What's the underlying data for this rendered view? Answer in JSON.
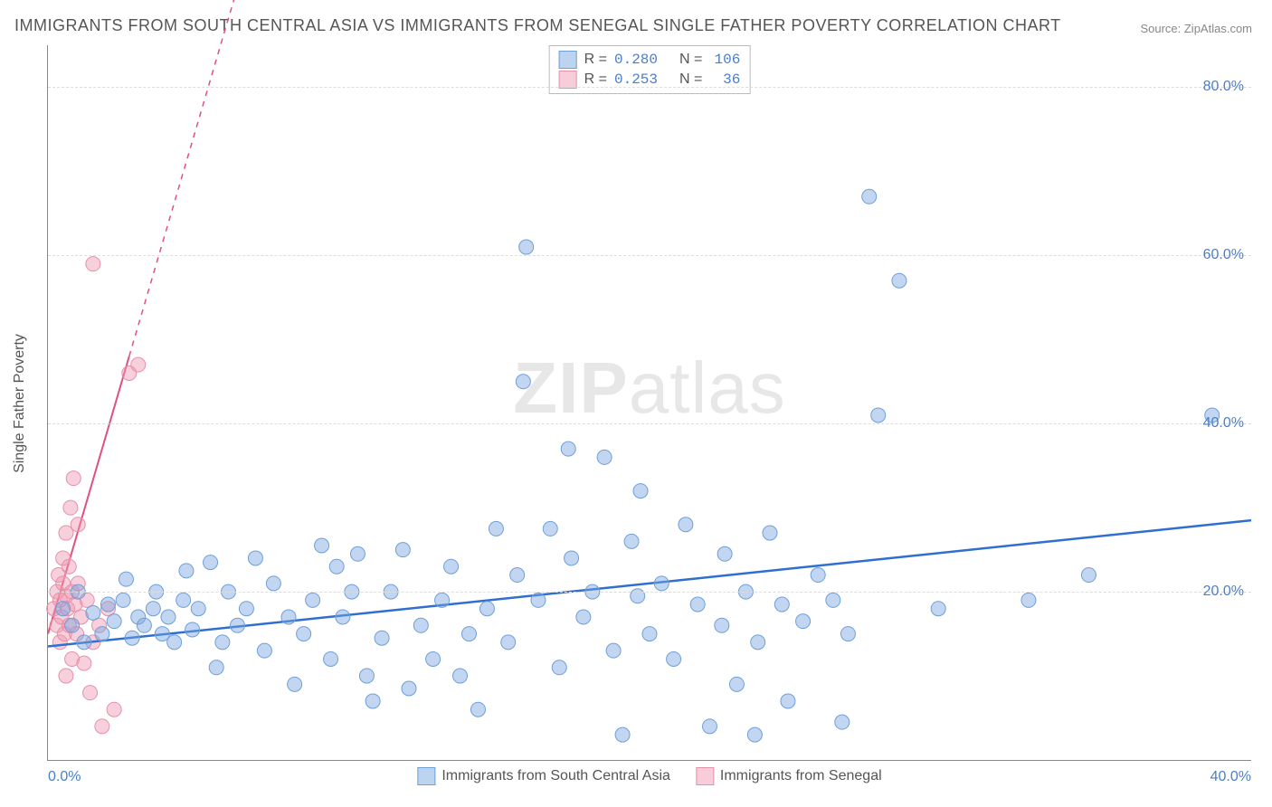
{
  "title": "IMMIGRANTS FROM SOUTH CENTRAL ASIA VS IMMIGRANTS FROM SENEGAL SINGLE FATHER POVERTY CORRELATION CHART",
  "source": "Source: ZipAtlas.com",
  "watermark_zip": "ZIP",
  "watermark_atlas": "atlas",
  "y_axis_title": "Single Father Poverty",
  "chart": {
    "type": "scatter",
    "background_color": "#ffffff",
    "grid_color": "#dddddd",
    "axis_color": "#888888",
    "xlim": [
      0,
      40
    ],
    "ylim": [
      0,
      85
    ],
    "yticks": [
      20,
      40,
      60,
      80
    ],
    "ytick_labels": [
      "20.0%",
      "40.0%",
      "60.0%",
      "80.0%"
    ],
    "xticks": [
      0,
      40
    ],
    "xtick_labels": [
      "0.0%",
      "40.0%"
    ],
    "marker_radius": 8,
    "series": [
      {
        "name": "Immigrants from South Central Asia",
        "color_fill": "rgba(120,165,225,0.45)",
        "color_stroke": "#6f9fd8",
        "swatch_fill": "#bcd4f0",
        "swatch_border": "#6f9fd8",
        "r_value": "0.280",
        "n_value": "106",
        "trend": {
          "x1": 0,
          "y1": 13.5,
          "x2": 40,
          "y2": 28.5,
          "color": "#2f6fd0",
          "width": 2.5,
          "dash": "none",
          "extend_x": 40,
          "extend_y": 28.5
        },
        "points": [
          [
            0.5,
            18
          ],
          [
            0.8,
            16
          ],
          [
            1.0,
            20
          ],
          [
            1.2,
            14
          ],
          [
            1.5,
            17.5
          ],
          [
            1.8,
            15
          ],
          [
            2.0,
            18.5
          ],
          [
            2.2,
            16.5
          ],
          [
            2.5,
            19
          ],
          [
            2.6,
            21.5
          ],
          [
            2.8,
            14.5
          ],
          [
            3.0,
            17
          ],
          [
            3.2,
            16
          ],
          [
            3.5,
            18
          ],
          [
            3.6,
            20
          ],
          [
            3.8,
            15
          ],
          [
            4.0,
            17
          ],
          [
            4.2,
            14
          ],
          [
            4.5,
            19
          ],
          [
            4.6,
            22.5
          ],
          [
            4.8,
            15.5
          ],
          [
            5.0,
            18
          ],
          [
            5.4,
            23.5
          ],
          [
            5.6,
            11
          ],
          [
            5.8,
            14
          ],
          [
            6.0,
            20
          ],
          [
            6.3,
            16
          ],
          [
            6.6,
            18
          ],
          [
            6.9,
            24
          ],
          [
            7.2,
            13
          ],
          [
            7.5,
            21
          ],
          [
            8.0,
            17
          ],
          [
            8.2,
            9
          ],
          [
            8.5,
            15
          ],
          [
            8.8,
            19
          ],
          [
            9.1,
            25.5
          ],
          [
            9.4,
            12
          ],
          [
            9.6,
            23
          ],
          [
            9.8,
            17
          ],
          [
            10.1,
            20
          ],
          [
            10.3,
            24.5
          ],
          [
            10.6,
            10
          ],
          [
            10.8,
            7
          ],
          [
            11.1,
            14.5
          ],
          [
            11.4,
            20
          ],
          [
            11.8,
            25
          ],
          [
            12.0,
            8.5
          ],
          [
            12.4,
            16
          ],
          [
            12.8,
            12
          ],
          [
            13.1,
            19
          ],
          [
            13.4,
            23
          ],
          [
            13.7,
            10
          ],
          [
            14.0,
            15
          ],
          [
            14.3,
            6
          ],
          [
            14.6,
            18
          ],
          [
            14.9,
            27.5
          ],
          [
            15.3,
            14
          ],
          [
            15.6,
            22
          ],
          [
            15.8,
            45
          ],
          [
            15.9,
            61
          ],
          [
            16.3,
            19
          ],
          [
            16.7,
            27.5
          ],
          [
            17.0,
            11
          ],
          [
            17.3,
            37
          ],
          [
            17.4,
            24
          ],
          [
            17.8,
            17
          ],
          [
            18.1,
            20
          ],
          [
            18.5,
            36
          ],
          [
            18.8,
            13
          ],
          [
            19.1,
            3
          ],
          [
            19.4,
            26
          ],
          [
            19.6,
            19.5
          ],
          [
            19.7,
            32
          ],
          [
            20.0,
            15
          ],
          [
            20.4,
            21
          ],
          [
            20.8,
            12
          ],
          [
            21.2,
            28
          ],
          [
            21.6,
            18.5
          ],
          [
            22.0,
            4
          ],
          [
            22.4,
            16
          ],
          [
            22.5,
            24.5
          ],
          [
            22.9,
            9
          ],
          [
            23.2,
            20
          ],
          [
            23.5,
            3
          ],
          [
            23.6,
            14
          ],
          [
            24.0,
            27
          ],
          [
            24.4,
            18.5
          ],
          [
            24.6,
            7
          ],
          [
            25.1,
            16.5
          ],
          [
            25.6,
            22
          ],
          [
            26.1,
            19
          ],
          [
            26.4,
            4.5
          ],
          [
            26.6,
            15
          ],
          [
            27.3,
            67
          ],
          [
            27.6,
            41
          ],
          [
            28.3,
            57
          ],
          [
            29.6,
            18
          ],
          [
            32.6,
            19
          ],
          [
            34.6,
            22
          ],
          [
            38.7,
            41
          ]
        ]
      },
      {
        "name": "Immigrants from Senegal",
        "color_fill": "rgba(240,150,175,0.45)",
        "color_stroke": "#e690ab",
        "swatch_fill": "#f6cdd9",
        "swatch_border": "#e690ab",
        "r_value": "0.253",
        "n_value": "36",
        "trend": {
          "x1": 0,
          "y1": 15,
          "x2": 2.7,
          "y2": 48,
          "color": "#e05080",
          "width": 2,
          "dash": "none",
          "extend_x": 8.2,
          "extend_y": 115
        },
        "points": [
          [
            0.2,
            18
          ],
          [
            0.3,
            16
          ],
          [
            0.3,
            20
          ],
          [
            0.35,
            22
          ],
          [
            0.4,
            14
          ],
          [
            0.4,
            19
          ],
          [
            0.45,
            17
          ],
          [
            0.5,
            21
          ],
          [
            0.5,
            24
          ],
          [
            0.55,
            15
          ],
          [
            0.6,
            19.5
          ],
          [
            0.6,
            27
          ],
          [
            0.65,
            18
          ],
          [
            0.7,
            16
          ],
          [
            0.7,
            23
          ],
          [
            0.75,
            30
          ],
          [
            0.8,
            20
          ],
          [
            0.8,
            12
          ],
          [
            0.85,
            33.5
          ],
          [
            0.9,
            18.5
          ],
          [
            0.95,
            15
          ],
          [
            1.0,
            21
          ],
          [
            1.0,
            28
          ],
          [
            1.1,
            17
          ],
          [
            1.2,
            11.5
          ],
          [
            1.3,
            19
          ],
          [
            1.4,
            8
          ],
          [
            1.5,
            14
          ],
          [
            1.5,
            59
          ],
          [
            1.7,
            16
          ],
          [
            1.8,
            4
          ],
          [
            2.0,
            18
          ],
          [
            2.2,
            6
          ],
          [
            2.7,
            46
          ],
          [
            3.0,
            47
          ],
          [
            0.6,
            10
          ]
        ]
      }
    ]
  },
  "legend_top": {
    "label_r": "R =",
    "label_n": "N ="
  },
  "legend_bottom": {
    "items": [
      "Immigrants from South Central Asia",
      "Immigrants from Senegal"
    ]
  }
}
